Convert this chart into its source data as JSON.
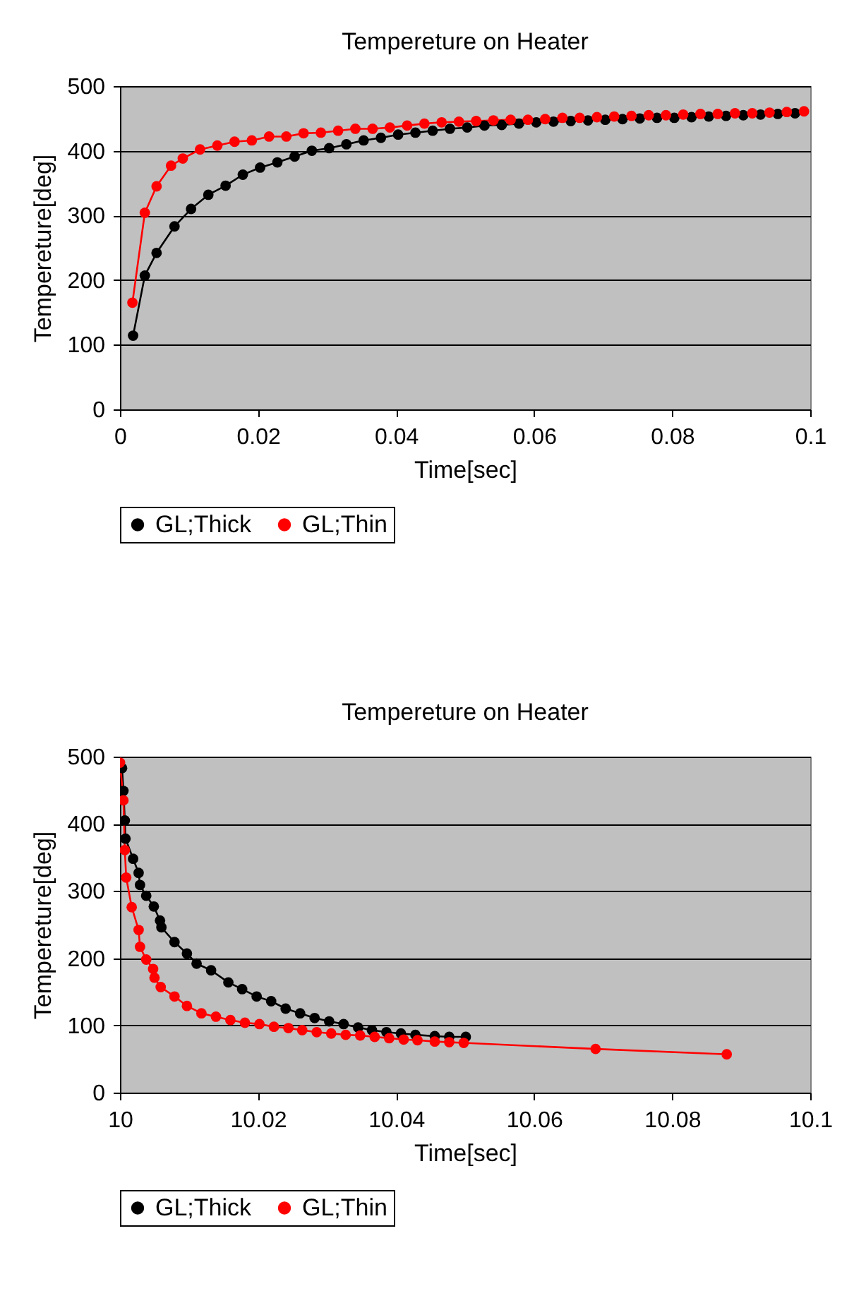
{
  "chart_data": [
    {
      "type": "line",
      "title": "Tempereture on Heater",
      "xlabel": "Time[sec]",
      "ylabel": "Tempereture[deg]",
      "xlim": [
        0,
        0.1
      ],
      "xticks": [
        0,
        0.02,
        0.04,
        0.06,
        0.08,
        0.1
      ],
      "ylim": [
        0,
        500
      ],
      "yticks": [
        0,
        100,
        200,
        300,
        400,
        500
      ],
      "grid": "y",
      "legend": "bottom",
      "marker": "circle",
      "line_style": "solid",
      "series": [
        {
          "name": "GL;Thick",
          "color": "#000000",
          "x": [
            0.0019,
            0.0036,
            0.0053,
            0.0079,
            0.0103,
            0.0128,
            0.0153,
            0.0178,
            0.0203,
            0.0228,
            0.0253,
            0.0278,
            0.0303,
            0.0328,
            0.0353,
            0.0378,
            0.0403,
            0.0428,
            0.0453,
            0.0478,
            0.0503,
            0.0528,
            0.0553,
            0.0578,
            0.0603,
            0.0628,
            0.0653,
            0.0678,
            0.0703,
            0.0728,
            0.0753,
            0.0778,
            0.0803,
            0.0828,
            0.0853,
            0.0878,
            0.0903,
            0.0928,
            0.0953,
            0.0978
          ],
          "values": [
            114,
            207,
            242,
            283,
            310,
            332,
            346,
            363,
            374,
            382,
            391,
            400,
            404,
            410,
            416,
            420,
            425,
            428,
            431,
            434,
            436,
            439,
            440,
            442,
            444,
            445,
            446,
            447,
            448,
            449,
            450,
            451,
            451,
            452,
            453,
            454,
            455,
            456,
            457,
            458
          ]
        },
        {
          "name": "GL;Thin",
          "color": "#ff0000",
          "x": [
            0.0018,
            0.0036,
            0.0053,
            0.0074,
            0.0091,
            0.0116,
            0.0141,
            0.0166,
            0.0191,
            0.0216,
            0.0241,
            0.0266,
            0.0291,
            0.0316,
            0.0341,
            0.0366,
            0.0391,
            0.0416,
            0.0441,
            0.0466,
            0.0491,
            0.0516,
            0.0541,
            0.0566,
            0.0591,
            0.0616,
            0.0641,
            0.0666,
            0.0691,
            0.0716,
            0.0741,
            0.0766,
            0.0791,
            0.0816,
            0.0841,
            0.0866,
            0.0891,
            0.0916,
            0.0941,
            0.0966,
            0.0991
          ],
          "values": [
            165,
            304,
            345,
            377,
            388,
            402,
            408,
            414,
            416,
            422,
            422,
            427,
            428,
            431,
            434,
            434,
            436,
            439,
            442,
            444,
            445,
            446,
            447,
            448,
            448,
            449,
            451,
            451,
            452,
            453,
            454,
            455,
            455,
            456,
            457,
            457,
            458,
            458,
            459,
            460,
            461
          ]
        }
      ]
    },
    {
      "type": "line",
      "title": "Tempereture on Heater",
      "xlabel": "Time[sec]",
      "ylabel": "Tempereture[deg]",
      "xlim": [
        10,
        10.1
      ],
      "xticks": [
        10,
        10.02,
        10.04,
        10.06,
        10.08,
        10.1
      ],
      "ylim": [
        0,
        500
      ],
      "yticks": [
        0,
        100,
        200,
        300,
        400,
        500
      ],
      "grid": "y",
      "legend": "bottom",
      "marker": "circle",
      "line_style": "solid",
      "series": [
        {
          "name": "GL;Thick",
          "color": "#000000",
          "x": [
            10.0003,
            10.0005,
            10.0007,
            10.0008,
            10.0019,
            10.0027,
            10.0029,
            10.0038,
            10.0049,
            10.0058,
            10.006,
            10.0079,
            10.0097,
            10.0111,
            10.0132,
            10.0157,
            10.0177,
            10.0198,
            10.0219,
            10.024,
            10.0261,
            10.0282,
            10.0303,
            10.0324,
            10.0345,
            10.0365,
            10.0386,
            10.0407,
            10.0428,
            10.0456,
            10.0477,
            10.0501
          ],
          "values": [
            483,
            449,
            405,
            378,
            348,
            327,
            309,
            293,
            277,
            256,
            246,
            224,
            207,
            192,
            182,
            164,
            154,
            143,
            136,
            125,
            118,
            111,
            106,
            102,
            97,
            93,
            90,
            88,
            86,
            84,
            83,
            83
          ]
        },
        {
          "name": "GL;Thin",
          "color": "#ff0000",
          "x": [
            10.0,
            10.0005,
            10.0007,
            10.0009,
            10.0017,
            10.0027,
            10.0029,
            10.0038,
            10.0048,
            10.005,
            10.0059,
            10.0079,
            10.0097,
            10.0118,
            10.0139,
            10.016,
            10.0181,
            10.0202,
            10.0223,
            10.0244,
            10.0264,
            10.0285,
            10.0306,
            10.0327,
            10.0348,
            10.0369,
            10.039,
            10.0411,
            10.0431,
            10.0456,
            10.0477,
            10.0498,
            10.0689,
            10.0879
          ],
          "values": [
            491,
            435,
            361,
            320,
            276,
            242,
            217,
            198,
            184,
            171,
            157,
            143,
            129,
            118,
            113,
            108,
            104,
            102,
            98,
            96,
            93,
            90,
            88,
            86,
            85,
            83,
            81,
            79,
            78,
            76,
            75,
            74,
            65,
            57
          ]
        }
      ]
    }
  ]
}
